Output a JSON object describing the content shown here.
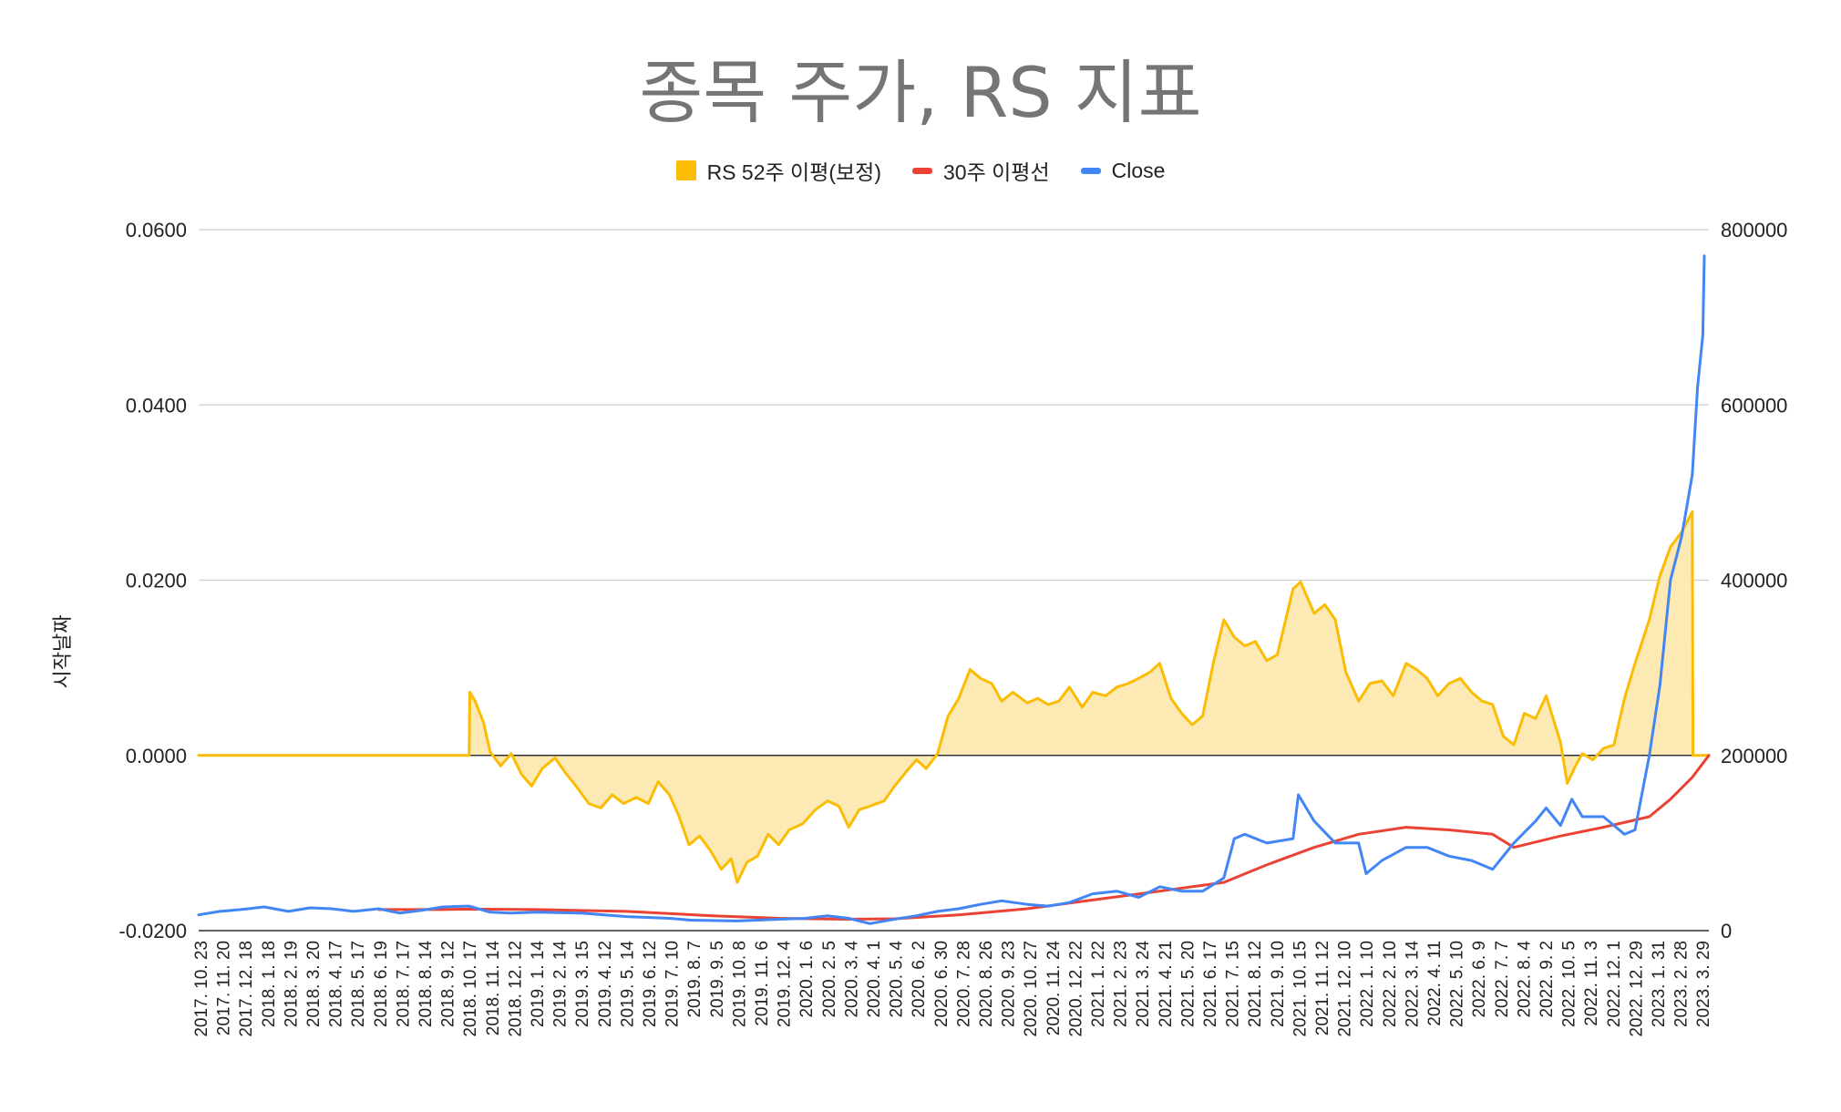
{
  "chart_data": {
    "type": "line",
    "title": "종목 주가, RS 지표",
    "ylabel": "시작날짜",
    "y2label": "",
    "xlabel": "",
    "legend_position": "top-center",
    "grid": true,
    "ylim": [
      -0.02,
      0.06
    ],
    "y_ticks": [
      "-0.0200",
      "0.0000",
      "0.0200",
      "0.0400",
      "0.0600"
    ],
    "y2lim": [
      0,
      800000
    ],
    "y2_ticks": [
      "0",
      "200000",
      "400000",
      "600000",
      "800000"
    ],
    "x_start": "2017. 10. 23",
    "x_end": "2023. 4. 20",
    "x_ticks": [
      "2017. 10. 23",
      "2017. 11. 20",
      "2017. 12. 18",
      "2018. 1. 18",
      "2018. 2. 19",
      "2018. 3. 20",
      "2018. 4. 17",
      "2018. 5. 17",
      "2018. 6. 19",
      "2018. 7. 17",
      "2018. 8. 14",
      "2018. 9. 12",
      "2018. 10. 17",
      "2018. 11. 14",
      "2018. 12. 12",
      "2019. 1. 14",
      "2019. 2. 14",
      "2019. 3. 15",
      "2019. 4. 12",
      "2019. 5. 14",
      "2019. 6. 12",
      "2019. 7. 10",
      "2019. 8. 7",
      "2019. 9. 5",
      "2019. 10. 8",
      "2019. 11. 6",
      "2019. 12. 4",
      "2020. 1. 6",
      "2020. 2. 5",
      "2020. 3. 4",
      "2020. 4. 1",
      "2020. 5. 4",
      "2020. 6. 2",
      "2020. 6. 30",
      "2020. 7. 28",
      "2020. 8. 26",
      "2020. 9. 23",
      "2020. 10. 27",
      "2020. 11. 24",
      "2020. 12. 22",
      "2021. 1. 22",
      "2021. 2. 23",
      "2021. 3. 24",
      "2021. 4. 21",
      "2021. 5. 20",
      "2021. 6. 17",
      "2021. 7. 15",
      "2021. 8. 12",
      "2021. 9. 10",
      "2021. 10. 15",
      "2021. 11. 12",
      "2021. 12. 10",
      "2022. 1. 10",
      "2022. 2. 10",
      "2022. 3. 14",
      "2022. 4. 11",
      "2022. 5. 10",
      "2022. 6. 9",
      "2022. 7. 7",
      "2022. 8. 4",
      "2022. 9. 2",
      "2022. 10. 5",
      "2022. 11. 3",
      "2022. 12. 1",
      "2022. 12. 29",
      "2023. 1. 31",
      "2023. 2. 28",
      "2023. 3. 29"
    ],
    "series": [
      {
        "name": "RS 52주 이평(보정)",
        "type": "area",
        "axis": "left",
        "color": "#fbbc04",
        "fill": "#fde9b3",
        "points": [
          [
            "2017. 10. 23",
            0
          ],
          [
            "2018. 10. 17",
            0
          ],
          [
            "2018. 10. 18",
            0.0072
          ],
          [
            "2018. 10. 25",
            0.0062
          ],
          [
            "2018. 11. 5",
            0.0038
          ],
          [
            "2018. 11. 14",
            0.0004
          ],
          [
            "2018. 11. 28",
            -0.0012
          ],
          [
            "2018. 12. 12",
            0.0002
          ],
          [
            "2018. 12. 26",
            -0.0022
          ],
          [
            "2019. 1. 8",
            -0.0035
          ],
          [
            "2019. 1. 22",
            -0.0015
          ],
          [
            "2019. 2. 8",
            -0.0003
          ],
          [
            "2019. 2. 22",
            -0.002
          ],
          [
            "2019. 3. 8",
            -0.0035
          ],
          [
            "2019. 3. 25",
            -0.0055
          ],
          [
            "2019. 4. 10",
            -0.006
          ],
          [
            "2019. 4. 25",
            -0.0045
          ],
          [
            "2019. 5. 10",
            -0.0055
          ],
          [
            "2019. 5. 27",
            -0.0048
          ],
          [
            "2019. 6. 12",
            -0.0055
          ],
          [
            "2019. 6. 25",
            -0.003
          ],
          [
            "2019. 7. 10",
            -0.0045
          ],
          [
            "2019. 7. 22",
            -0.0068
          ],
          [
            "2019. 8. 5",
            -0.0102
          ],
          [
            "2019. 8. 19",
            -0.0092
          ],
          [
            "2019. 9. 2",
            -0.0108
          ],
          [
            "2019. 9. 17",
            -0.013
          ],
          [
            "2019. 9. 30",
            -0.0118
          ],
          [
            "2019. 10. 8",
            -0.0145
          ],
          [
            "2019. 10. 21",
            -0.0122
          ],
          [
            "2019. 11. 4",
            -0.0115
          ],
          [
            "2019. 11. 18",
            -0.009
          ],
          [
            "2019. 12. 2",
            -0.0102
          ],
          [
            "2019. 12. 16",
            -0.0085
          ],
          [
            "2020. 1. 3",
            -0.0078
          ],
          [
            "2020. 1. 20",
            -0.0062
          ],
          [
            "2020. 2. 5",
            -0.0052
          ],
          [
            "2020. 2. 20",
            -0.0058
          ],
          [
            "2020. 3. 4",
            -0.0082
          ],
          [
            "2020. 3. 18",
            -0.0062
          ],
          [
            "2020. 4. 1",
            -0.0058
          ],
          [
            "2020. 4. 20",
            -0.0052
          ],
          [
            "2020. 5. 4",
            -0.0035
          ],
          [
            "2020. 5. 20",
            -0.0018
          ],
          [
            "2020. 6. 2",
            -0.0005
          ],
          [
            "2020. 6. 15",
            -0.0015
          ],
          [
            "2020. 6. 30",
            0.0002
          ],
          [
            "2020. 7. 14",
            0.0045
          ],
          [
            "2020. 7. 28",
            0.0065
          ],
          [
            "2020. 8. 12",
            0.0098
          ],
          [
            "2020. 8. 26",
            0.0088
          ],
          [
            "2020. 9. 10",
            0.0082
          ],
          [
            "2020. 9. 23",
            0.0062
          ],
          [
            "2020. 10. 8",
            0.0072
          ],
          [
            "2020. 10. 27",
            0.006
          ],
          [
            "2020. 11. 10",
            0.0065
          ],
          [
            "2020. 11. 24",
            0.0058
          ],
          [
            "2020. 12. 8",
            0.0062
          ],
          [
            "2020. 12. 22",
            0.0078
          ],
          [
            "2021. 1. 8",
            0.0055
          ],
          [
            "2021. 1. 22",
            0.0072
          ],
          [
            "2021. 2. 8",
            0.0068
          ],
          [
            "2021. 2. 23",
            0.0078
          ],
          [
            "2021. 3. 10",
            0.0082
          ],
          [
            "2021. 3. 24",
            0.0088
          ],
          [
            "2021. 4. 8",
            0.0095
          ],
          [
            "2021. 4. 21",
            0.0105
          ],
          [
            "2021. 5. 6",
            0.0065
          ],
          [
            "2021. 5. 20",
            0.0048
          ],
          [
            "2021. 6. 3",
            0.0035
          ],
          [
            "2021. 6. 17",
            0.0045
          ],
          [
            "2021. 7. 1",
            0.0105
          ],
          [
            "2021. 7. 15",
            0.0155
          ],
          [
            "2021. 7. 29",
            0.0135
          ],
          [
            "2021. 8. 12",
            0.0125
          ],
          [
            "2021. 8. 26",
            0.013
          ],
          [
            "2021. 9. 10",
            0.0108
          ],
          [
            "2021. 9. 24",
            0.0115
          ],
          [
            "2021. 10. 8",
            0.0165
          ],
          [
            "2021. 10. 15",
            0.019
          ],
          [
            "2021. 10. 25",
            0.0198
          ],
          [
            "2021. 11. 12",
            0.0162
          ],
          [
            "2021. 11. 26",
            0.0172
          ],
          [
            "2021. 12. 10",
            0.0155
          ],
          [
            "2021. 12. 24",
            0.0095
          ],
          [
            "2022. 1. 10",
            0.0062
          ],
          [
            "2022. 1. 25",
            0.0082
          ],
          [
            "2022. 2. 10",
            0.0085
          ],
          [
            "2022. 2. 25",
            0.0068
          ],
          [
            "2022. 3. 14",
            0.0105
          ],
          [
            "2022. 3. 28",
            0.0098
          ],
          [
            "2022. 4. 11",
            0.0088
          ],
          [
            "2022. 4. 25",
            0.0068
          ],
          [
            "2022. 5. 10",
            0.0082
          ],
          [
            "2022. 5. 25",
            0.0088
          ],
          [
            "2022. 6. 9",
            0.0072
          ],
          [
            "2022. 6. 23",
            0.0062
          ],
          [
            "2022. 7. 7",
            0.0058
          ],
          [
            "2022. 7. 21",
            0.0022
          ],
          [
            "2022. 8. 4",
            0.0012
          ],
          [
            "2022. 8. 18",
            0.0048
          ],
          [
            "2022. 9. 2",
            0.0042
          ],
          [
            "2022. 9. 16",
            0.0068
          ],
          [
            "2022. 10. 5",
            0.0015
          ],
          [
            "2022. 10. 14",
            -0.0032
          ],
          [
            "2022. 10. 25",
            -0.0012
          ],
          [
            "2022. 11. 3",
            0.0002
          ],
          [
            "2022. 11. 17",
            -0.0005
          ],
          [
            "2022. 12. 1",
            0.0008
          ],
          [
            "2022. 12. 15",
            0.0012
          ],
          [
            "2022. 12. 29",
            0.0065
          ],
          [
            "2023. 1. 12",
            0.0105
          ],
          [
            "2023. 1. 31",
            0.0155
          ],
          [
            "2023. 2. 14",
            0.0205
          ],
          [
            "2023. 2. 28",
            0.0238
          ],
          [
            "2023. 3. 15",
            0.0255
          ],
          [
            "2023. 3. 29",
            0.0278
          ],
          [
            "2023. 3. 30",
            0
          ],
          [
            "2023. 4. 20",
            0
          ]
        ]
      },
      {
        "name": "30주 이평선",
        "type": "line",
        "axis": "right",
        "color": "#ea4335",
        "points": [
          [
            "2018. 6. 19",
            24000
          ],
          [
            "2018. 9. 12",
            24000
          ],
          [
            "2018. 10. 17",
            24500
          ],
          [
            "2019. 1. 14",
            24000
          ],
          [
            "2019. 5. 14",
            22000
          ],
          [
            "2019. 9. 5",
            17000
          ],
          [
            "2019. 12. 4",
            14000
          ],
          [
            "2020. 3. 4",
            13000
          ],
          [
            "2020. 5. 4",
            13500
          ],
          [
            "2020. 7. 28",
            18000
          ],
          [
            "2020. 10. 27",
            25000
          ],
          [
            "2021. 1. 22",
            35000
          ],
          [
            "2021. 4. 21",
            45000
          ],
          [
            "2021. 7. 15",
            55000
          ],
          [
            "2021. 9. 10",
            75000
          ],
          [
            "2021. 11. 12",
            95000
          ],
          [
            "2022. 1. 10",
            110000
          ],
          [
            "2022. 3. 14",
            118000
          ],
          [
            "2022. 5. 10",
            115000
          ],
          [
            "2022. 7. 7",
            110000
          ],
          [
            "2022. 8. 4",
            95000
          ],
          [
            "2022. 10. 5",
            108000
          ],
          [
            "2022. 12. 1",
            118000
          ],
          [
            "2023. 1. 31",
            130000
          ],
          [
            "2023. 2. 28",
            150000
          ],
          [
            "2023. 3. 29",
            175000
          ],
          [
            "2023. 4. 20",
            200000
          ]
        ]
      },
      {
        "name": "Close",
        "type": "line",
        "axis": "right",
        "color": "#4285f4",
        "points": [
          [
            "2017. 10. 23",
            18000
          ],
          [
            "2017. 11. 20",
            22000
          ],
          [
            "2017. 12. 18",
            24000
          ],
          [
            "2018. 1. 18",
            27000
          ],
          [
            "2018. 2. 19",
            22000
          ],
          [
            "2018. 3. 20",
            26000
          ],
          [
            "2018. 4. 17",
            25000
          ],
          [
            "2018. 5. 17",
            22000
          ],
          [
            "2018. 6. 19",
            25000
          ],
          [
            "2018. 7. 17",
            20000
          ],
          [
            "2018. 8. 14",
            23000
          ],
          [
            "2018. 9. 12",
            27000
          ],
          [
            "2018. 10. 17",
            28000
          ],
          [
            "2018. 11. 14",
            21000
          ],
          [
            "2018. 12. 12",
            20000
          ],
          [
            "2019. 1. 14",
            21000
          ],
          [
            "2019. 3. 15",
            20000
          ],
          [
            "2019. 5. 14",
            16000
          ],
          [
            "2019. 7. 10",
            14000
          ],
          [
            "2019. 8. 7",
            12000
          ],
          [
            "2019. 10. 8",
            11000
          ],
          [
            "2019. 12. 4",
            13000
          ],
          [
            "2020. 1. 6",
            14000
          ],
          [
            "2020. 2. 5",
            17000
          ],
          [
            "2020. 3. 4",
            14000
          ],
          [
            "2020. 4. 1",
            8000
          ],
          [
            "2020. 5. 4",
            13000
          ],
          [
            "2020. 6. 2",
            17000
          ],
          [
            "2020. 6. 30",
            22000
          ],
          [
            "2020. 7. 28",
            25000
          ],
          [
            "2020. 8. 26",
            30000
          ],
          [
            "2020. 9. 23",
            34000
          ],
          [
            "2020. 10. 27",
            30000
          ],
          [
            "2020. 11. 24",
            28000
          ],
          [
            "2020. 12. 22",
            32000
          ],
          [
            "2021. 1. 22",
            42000
          ],
          [
            "2021. 2. 23",
            45000
          ],
          [
            "2021. 3. 24",
            38000
          ],
          [
            "2021. 4. 21",
            50000
          ],
          [
            "2021. 5. 20",
            45000
          ],
          [
            "2021. 6. 17",
            45000
          ],
          [
            "2021. 7. 15",
            60000
          ],
          [
            "2021. 7. 29",
            105000
          ],
          [
            "2021. 8. 12",
            110000
          ],
          [
            "2021. 9. 10",
            100000
          ],
          [
            "2021. 10. 15",
            105000
          ],
          [
            "2021. 10. 22",
            155000
          ],
          [
            "2021. 11. 12",
            125000
          ],
          [
            "2021. 12. 10",
            100000
          ],
          [
            "2022. 1. 10",
            100000
          ],
          [
            "2022. 1. 20",
            65000
          ],
          [
            "2022. 2. 10",
            80000
          ],
          [
            "2022. 3. 14",
            95000
          ],
          [
            "2022. 4. 11",
            95000
          ],
          [
            "2022. 5. 10",
            85000
          ],
          [
            "2022. 6. 9",
            80000
          ],
          [
            "2022. 7. 7",
            70000
          ],
          [
            "2022. 8. 4",
            100000
          ],
          [
            "2022. 9. 2",
            125000
          ],
          [
            "2022. 9. 16",
            140000
          ],
          [
            "2022. 10. 5",
            120000
          ],
          [
            "2022. 10. 20",
            150000
          ],
          [
            "2022. 11. 3",
            130000
          ],
          [
            "2022. 12. 1",
            130000
          ],
          [
            "2022. 12. 29",
            110000
          ],
          [
            "2023. 1. 12",
            115000
          ],
          [
            "2023. 1. 31",
            200000
          ],
          [
            "2023. 2. 14",
            280000
          ],
          [
            "2023. 2. 28",
            400000
          ],
          [
            "2023. 3. 15",
            450000
          ],
          [
            "2023. 3. 29",
            520000
          ],
          [
            "2023. 4. 5",
            620000
          ],
          [
            "2023. 4. 12",
            680000
          ],
          [
            "2023. 4. 14",
            770000
          ]
        ]
      }
    ]
  }
}
